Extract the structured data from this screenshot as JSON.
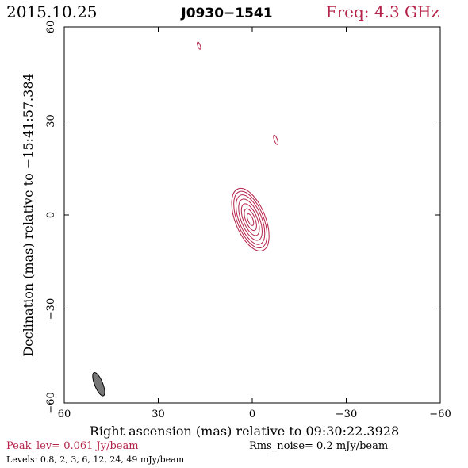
{
  "header": {
    "date": "2015.10.25",
    "source": "J0930−1541",
    "freq": "Freq: 4.3 GHz"
  },
  "footer": {
    "peak": "Peak_lev=  0.061 Jy/beam",
    "rms": "Rms_noise=  0.2 mJy/beam",
    "levels": "Levels: 0.8,   2,   3,   6,  12,  24,  49 mJy/beam"
  },
  "colors": {
    "accent": "#b5234a",
    "axis": "#000000",
    "beam_fill": "#777777"
  },
  "chart_data": {
    "type": "contour",
    "title": "J0930−1541",
    "xlabel": "Right ascension (mas) relative to 09:30:22.3928",
    "ylabel": "Declination (mas) relative to −15:41:57.384",
    "xlim": [
      60,
      -60
    ],
    "ylim": [
      -60,
      60
    ],
    "x_ticks": [
      60,
      30,
      0,
      -30,
      -60
    ],
    "x_tick_labels": [
      "60",
      "30",
      "0",
      "−30",
      "−60"
    ],
    "y_ticks": [
      60,
      30,
      0,
      -30,
      -60
    ],
    "y_tick_labels": [
      "60",
      "30",
      "0",
      "−30",
      "−60"
    ],
    "levels_mJy": [
      0.8,
      2,
      3,
      6,
      12,
      24,
      49
    ],
    "peak_Jy_per_beam": 0.061,
    "rms_mJy_per_beam": 0.2,
    "main_component": {
      "center": [
        0.6,
        -1.5
      ],
      "pa_deg": 158,
      "levels": [
        {
          "level": 0.8,
          "rx": 4.8,
          "ry": 10.6
        },
        {
          "level": 2,
          "rx": 4.2,
          "ry": 9.6
        },
        {
          "level": 3,
          "rx": 3.6,
          "ry": 8.4
        },
        {
          "level": 6,
          "rx": 2.9,
          "ry": 7.0
        },
        {
          "level": 12,
          "rx": 2.2,
          "ry": 5.4
        },
        {
          "level": 24,
          "rx": 1.5,
          "ry": 3.7
        },
        {
          "level": 49,
          "rx": 0.8,
          "ry": 2.0
        }
      ]
    },
    "secondary_components": [
      {
        "center": [
          17.0,
          54.0
        ],
        "rx": 0.4,
        "ry": 1.2,
        "pa_deg": 160,
        "level": 0.8
      },
      {
        "center": [
          -7.5,
          24.0
        ],
        "rx": 0.5,
        "ry": 1.6,
        "pa_deg": 160,
        "level": 0.8
      }
    ],
    "beam": {
      "center": [
        49.0,
        -54.0
      ],
      "rx": 1.3,
      "ry": 4.0,
      "pa_deg": 158
    }
  }
}
